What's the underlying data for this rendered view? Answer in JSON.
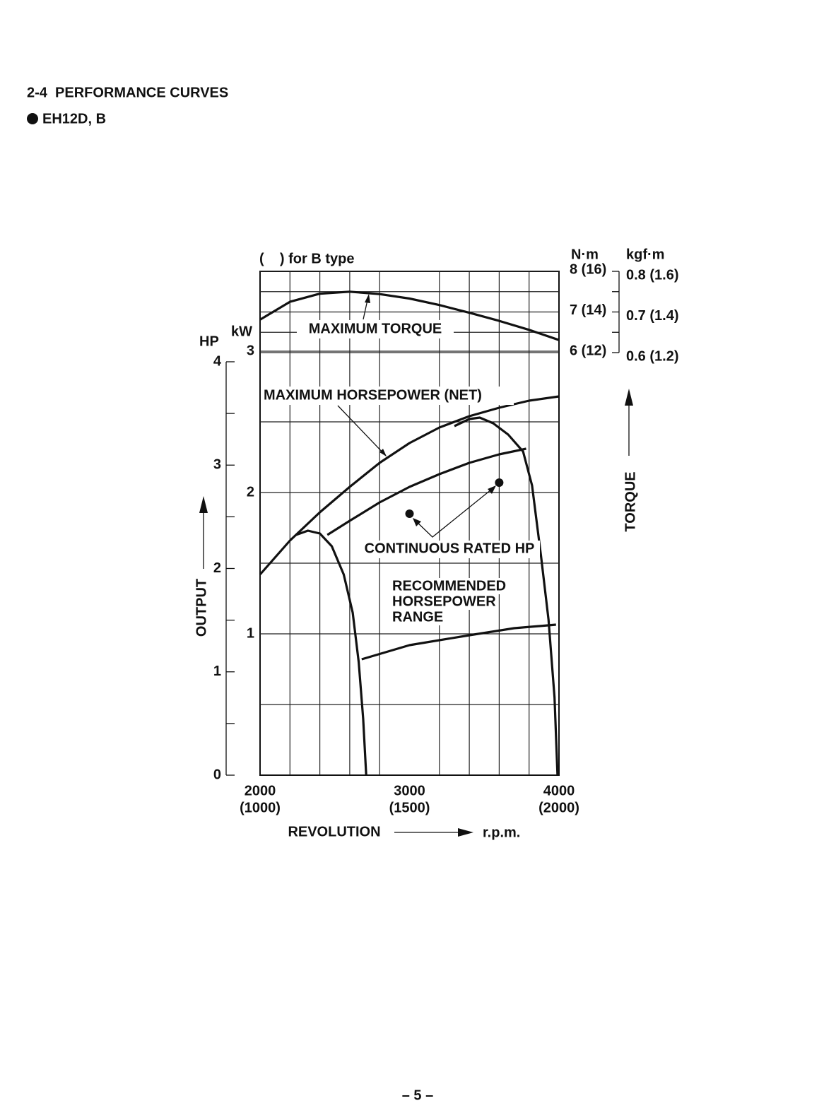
{
  "header": {
    "section": "2-4  PERFORMANCE CURVES",
    "model": "EH12D, B"
  },
  "page_number": "– 5 –",
  "chart_data": {
    "type": "line",
    "note": "(    ) for B type",
    "xlabel": "REVOLUTION",
    "xunit": "r.p.m.",
    "output_label": "OUTPUT",
    "hp_unit": "HP",
    "kw_unit": "kW",
    "torque_label": "TORQUE",
    "y2_unit": "N·m",
    "y3_unit": "kgf·m",
    "xlim": [
      2000,
      4000
    ],
    "xticks": [
      2000,
      3000,
      4000
    ],
    "xminor": [
      2200,
      2400,
      2600,
      2800,
      3200,
      3400,
      3600,
      3800
    ],
    "x2lim": [
      1000,
      2000
    ],
    "x2ticks": [
      {
        "value": 1000,
        "label": "(1000)"
      },
      {
        "value": 1500,
        "label": "(1500)"
      },
      {
        "value": 2000,
        "label": "(2000)"
      }
    ],
    "ylim": [
      0,
      3.565
    ],
    "yticks": [
      1,
      2,
      3
    ],
    "yminor": [
      0.5,
      1.5,
      2.5
    ],
    "hp_ylim": [
      0,
      4.875
    ],
    "hp_yticks": [
      0,
      1,
      2,
      3,
      4
    ],
    "hp_yminor": [
      0.5,
      1.5,
      2.5,
      3.5
    ],
    "y2lim": [
      -4.4,
      8
    ],
    "y2ticks": [
      {
        "value": 8,
        "label": "8 (16)"
      },
      {
        "value": 7,
        "label": "7 (14)"
      },
      {
        "value": 6,
        "label": "6 (12)"
      }
    ],
    "y2minor": [
      7.5,
      6.5
    ],
    "y3lim": [
      -0.44,
      0.8
    ],
    "y3ticks": [
      {
        "value": 0.8,
        "label": "0.8 (1.6)"
      },
      {
        "value": 0.7,
        "label": "0.7 (1.4)"
      },
      {
        "value": 0.6,
        "label": "0.6 (1.2)"
      }
    ],
    "grid": true,
    "color": "#111111",
    "series": [
      {
        "name": "MAXIMUM TORQUE",
        "axis": "y2",
        "x": [
          2000,
          2200,
          2400,
          2600,
          2800,
          3000,
          3200,
          3400,
          3600,
          3800,
          4000
        ],
        "values": [
          6.81,
          7.25,
          7.45,
          7.5,
          7.44,
          7.33,
          7.17,
          6.98,
          6.78,
          6.56,
          6.31
        ]
      },
      {
        "name": "MAXIMUM HORSEPOWER (NET)",
        "x": [
          2000,
          2200,
          2400,
          2600,
          2800,
          3000,
          3200,
          3400,
          3600,
          3800,
          4000
        ],
        "values": [
          1.42,
          1.66,
          1.86,
          2.04,
          2.21,
          2.35,
          2.46,
          2.54,
          2.6,
          2.65,
          2.68
        ]
      },
      {
        "x": [
          2450,
          2600,
          2800,
          3000,
          3200,
          3400,
          3600,
          3780
        ],
        "values": [
          1.7,
          1.8,
          1.93,
          2.04,
          2.13,
          2.21,
          2.27,
          2.31
        ]
      },
      {
        "x": [
          2680,
          3000,
          3400,
          3700,
          3980
        ],
        "values": [
          0.82,
          0.92,
          0.99,
          1.04,
          1.065
        ]
      },
      {
        "x": [
          2240,
          2320,
          2400,
          2480,
          2560,
          2620,
          2660,
          2690,
          2710
        ],
        "values": [
          1.7,
          1.73,
          1.71,
          1.62,
          1.42,
          1.15,
          0.8,
          0.4,
          0
        ]
      },
      {
        "x": [
          3300,
          3400,
          3470,
          3560,
          3660,
          3760,
          3820,
          3880,
          3930,
          3970,
          3990
        ],
        "values": [
          2.47,
          2.52,
          2.53,
          2.49,
          2.41,
          2.29,
          2.05,
          1.55,
          1.1,
          0.55,
          0
        ]
      },
      {
        "name": "CONTINUOUS RATED HP",
        "style": "points",
        "x": [
          3000,
          3600
        ],
        "values": [
          1.85,
          2.07
        ]
      }
    ],
    "range_label": [
      "RECOMMENDED",
      "HORSEPOWER",
      "RANGE"
    ]
  }
}
